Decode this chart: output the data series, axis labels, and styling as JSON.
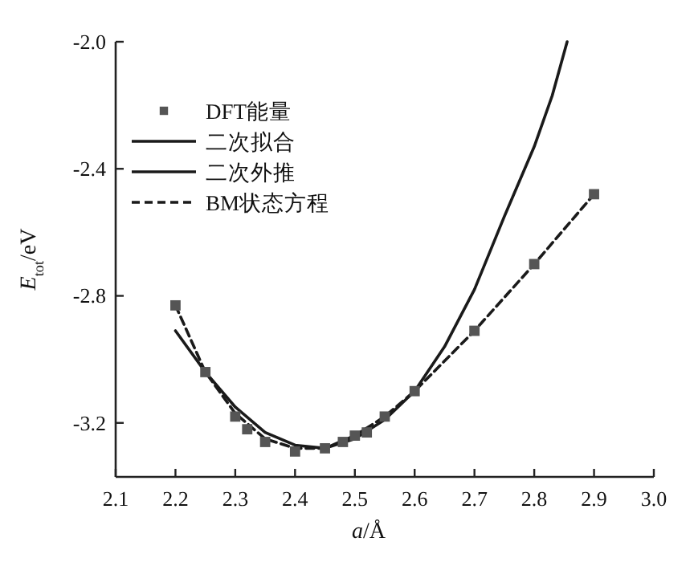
{
  "chart_data": {
    "type": "line",
    "xlabel": "*a*/Å",
    "ylabel": "*E*$_{tot}$/eV",
    "xlim": [
      2.1,
      3.0
    ],
    "ylim": [
      -3.37,
      -2.0
    ],
    "xticks": [
      2.1,
      2.2,
      2.3,
      2.4,
      2.5,
      2.6,
      2.7,
      2.8,
      2.9,
      {
        "value": 3,
        "label": "3.0"
      }
    ],
    "yticks": [
      {
        "value": -2,
        "label": "-2.0"
      },
      -2.4,
      -2.8,
      -3.2
    ],
    "legend": "top left",
    "series": [
      {
        "name": "DFT能量",
        "type": "scatter",
        "marker": "square",
        "color": "#555555",
        "x": [
          2.2,
          2.25,
          2.3,
          2.32,
          2.35,
          2.4,
          2.45,
          2.48,
          2.5,
          2.52,
          2.55,
          2.6,
          2.7,
          2.8,
          2.9
        ],
        "values": [
          -2.83,
          -3.04,
          -3.18,
          -3.22,
          -3.26,
          -3.29,
          -3.28,
          -3.26,
          -3.24,
          -3.23,
          -3.18,
          -3.1,
          -2.91,
          -2.7,
          -2.48
        ]
      },
      {
        "name": "二次拟合",
        "type": "line",
        "line_style": "solid",
        "color": "#1a1a1a",
        "x": [
          2.2,
          2.25,
          2.3,
          2.35,
          2.4,
          2.45,
          2.5,
          2.55,
          2.6
        ],
        "values": [
          -2.91,
          -3.04,
          -3.15,
          -3.23,
          -3.27,
          -3.28,
          -3.25,
          -3.19,
          -3.1
        ]
      },
      {
        "name": "二次外推",
        "type": "line",
        "line_style": "solid",
        "color": "#1a1a1a",
        "x": [
          2.6,
          2.65,
          2.7,
          2.75,
          2.8,
          2.83,
          2.855
        ],
        "values": [
          -3.1,
          -2.96,
          -2.78,
          -2.55,
          -2.33,
          -2.17,
          -2.0
        ]
      },
      {
        "name": "BM状态方程",
        "type": "line",
        "line_style": "dashed",
        "color": "#1a1a1a",
        "x": [
          2.2,
          2.25,
          2.3,
          2.35,
          2.4,
          2.45,
          2.5,
          2.55,
          2.6,
          2.7,
          2.8,
          2.9
        ],
        "values": [
          -2.83,
          -3.04,
          -3.17,
          -3.25,
          -3.28,
          -3.28,
          -3.24,
          -3.18,
          -3.1,
          -2.91,
          -2.7,
          -2.48
        ]
      }
    ]
  }
}
